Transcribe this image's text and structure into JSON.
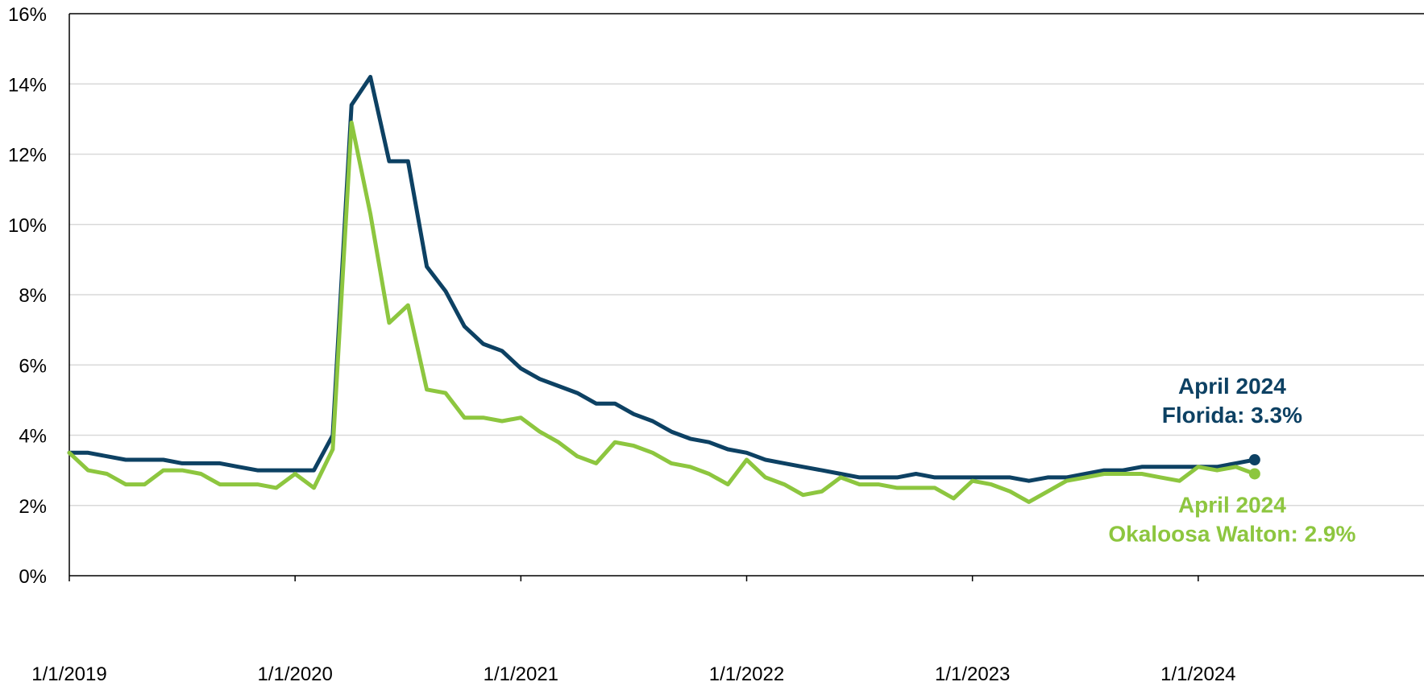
{
  "chart_data": {
    "type": "line",
    "title": "",
    "xlabel": "",
    "ylabel": "",
    "ylim": [
      0,
      16
    ],
    "xlim": [
      "2019-01",
      "2025-01"
    ],
    "y_ticks": [
      "0%",
      "2%",
      "4%",
      "6%",
      "8%",
      "10%",
      "12%",
      "14%",
      "16%"
    ],
    "x_ticks": [
      "1/1/2019",
      "1/1/2020",
      "1/1/2021",
      "1/1/2022",
      "1/1/2023",
      "1/1/2024"
    ],
    "grid": "horizontal",
    "legend": "none",
    "start": "2019-01",
    "series": [
      {
        "name": "Florida",
        "color": "#0d4163",
        "values": [
          3.5,
          3.5,
          3.4,
          3.3,
          3.3,
          3.3,
          3.2,
          3.2,
          3.2,
          3.1,
          3.0,
          3.0,
          3.0,
          3.0,
          4.0,
          13.4,
          14.2,
          11.8,
          11.8,
          8.8,
          8.1,
          7.1,
          6.6,
          6.4,
          5.9,
          5.6,
          5.4,
          5.2,
          4.9,
          4.9,
          4.6,
          4.4,
          4.1,
          3.9,
          3.8,
          3.6,
          3.5,
          3.3,
          3.2,
          3.1,
          3.0,
          2.9,
          2.8,
          2.8,
          2.8,
          2.9,
          2.8,
          2.8,
          2.8,
          2.8,
          2.8,
          2.7,
          2.8,
          2.8,
          2.9,
          3.0,
          3.0,
          3.1,
          3.1,
          3.1,
          3.1,
          3.1,
          3.2,
          3.3
        ]
      },
      {
        "name": "Okaloosa Walton",
        "color": "#8dc63f",
        "values": [
          3.5,
          3.0,
          2.9,
          2.6,
          2.6,
          3.0,
          3.0,
          2.9,
          2.6,
          2.6,
          2.6,
          2.5,
          2.9,
          2.5,
          3.6,
          12.9,
          10.3,
          7.2,
          7.7,
          5.3,
          5.2,
          4.5,
          4.5,
          4.4,
          4.5,
          4.1,
          3.8,
          3.4,
          3.2,
          3.8,
          3.7,
          3.5,
          3.2,
          3.1,
          2.9,
          2.6,
          3.3,
          2.8,
          2.6,
          2.3,
          2.4,
          2.8,
          2.6,
          2.6,
          2.5,
          2.5,
          2.5,
          2.2,
          2.7,
          2.6,
          2.4,
          2.1,
          2.4,
          2.7,
          2.8,
          2.9,
          2.9,
          2.9,
          2.8,
          2.7,
          3.1,
          3.0,
          3.1,
          2.9
        ]
      }
    ],
    "annotations": [
      {
        "lines": [
          "April 2024",
          "Florida: 3.3%"
        ],
        "color": "#0d4163"
      },
      {
        "lines": [
          "April 2024",
          "Okaloosa Walton: 2.9%"
        ],
        "color": "#8dc63f"
      }
    ]
  }
}
